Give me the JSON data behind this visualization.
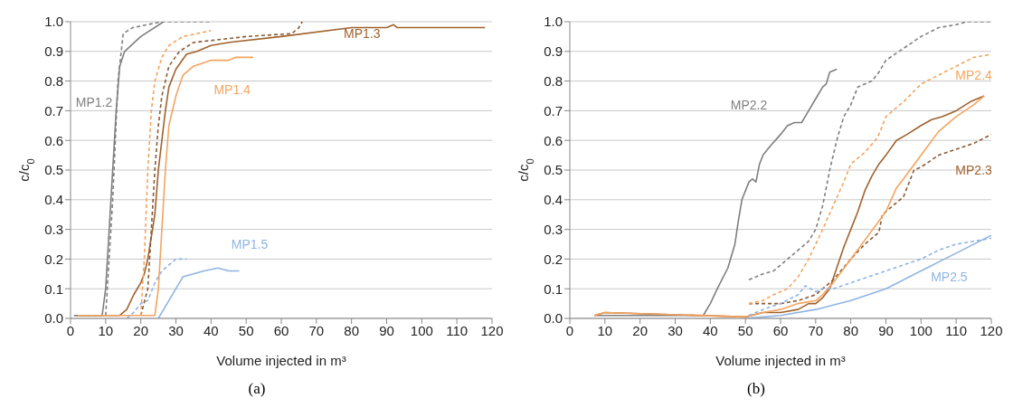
{
  "chart_data": [
    {
      "type": "line",
      "title": "(a)",
      "xlabel": "Volume injected in m³",
      "ylabel": "c/c$_{0}$",
      "xlim": [
        0,
        120
      ],
      "xticks": [
        0,
        10,
        20,
        30,
        40,
        50,
        60,
        70,
        80,
        90,
        100,
        110,
        120
      ],
      "ylim": [
        0,
        1
      ],
      "yticks": [
        {
          "value": 0,
          "label": "0.0"
        },
        {
          "value": 0.1,
          "label": "0.1"
        },
        {
          "value": 0.2,
          "label": "0.2"
        },
        {
          "value": 0.3,
          "label": "0.3"
        },
        {
          "value": 0.4,
          "label": "0.4"
        },
        {
          "value": 0.5,
          "label": "0.5"
        },
        {
          "value": 0.6,
          "label": "0.6"
        },
        {
          "value": 0.7,
          "label": "0.7"
        },
        {
          "value": 0.8,
          "label": "0.8"
        },
        {
          "value": 0.9,
          "label": "0.9"
        },
        {
          "value": 1,
          "label": "1.0"
        }
      ],
      "grid": "y",
      "marker": "none",
      "series": [
        {
          "name": "MP1.2",
          "color": "#7f7f7f",
          "line_style": "solid",
          "x": [
            1,
            9,
            10,
            12,
            13,
            14,
            15.4,
            20,
            26.5
          ],
          "values": [
            0.01,
            0.01,
            0.1,
            0.5,
            0.7,
            0.85,
            0.9,
            0.95,
            1.0
          ]
        },
        {
          "color": "#7f7f7f",
          "line_style": "dashed",
          "x": [
            1,
            10,
            12,
            13.5,
            15,
            17.7,
            26,
            40
          ],
          "values": [
            0.01,
            0.01,
            0.4,
            0.8,
            0.96,
            0.98,
            1.0,
            1.0
          ]
        },
        {
          "name": "MP1.3",
          "color": "#a0622d",
          "line_style": "solid",
          "x": [
            2,
            14,
            16,
            18,
            20,
            21,
            22,
            24,
            25,
            26,
            27,
            28,
            30,
            33,
            36,
            40,
            45,
            60,
            80,
            90,
            92,
            93,
            118
          ],
          "values": [
            0.01,
            0.01,
            0.03,
            0.08,
            0.12,
            0.15,
            0.2,
            0.35,
            0.5,
            0.6,
            0.7,
            0.78,
            0.84,
            0.89,
            0.9,
            0.92,
            0.93,
            0.95,
            0.98,
            0.98,
            0.99,
            0.98,
            0.98
          ]
        },
        {
          "color": "#8b5a32",
          "line_style": "dashed",
          "x": [
            20,
            22,
            23,
            24,
            25,
            26,
            28,
            31,
            35,
            50,
            63,
            65,
            66
          ],
          "values": [
            0.01,
            0.1,
            0.3,
            0.5,
            0.65,
            0.75,
            0.85,
            0.9,
            0.93,
            0.95,
            0.96,
            0.98,
            1.0
          ]
        },
        {
          "name": "MP1.4",
          "color": "#f4a460",
          "line_style": "solid",
          "x": [
            2,
            24,
            25,
            26,
            27,
            28,
            30,
            32,
            35,
            40,
            45,
            47,
            52
          ],
          "values": [
            0.01,
            0.01,
            0.1,
            0.3,
            0.5,
            0.65,
            0.75,
            0.82,
            0.85,
            0.87,
            0.87,
            0.88,
            0.88
          ]
        },
        {
          "color": "#f4a460",
          "line_style": "dashed",
          "x": [
            20,
            21,
            22,
            23,
            24,
            26,
            28,
            32,
            40
          ],
          "values": [
            0.01,
            0.2,
            0.5,
            0.7,
            0.8,
            0.88,
            0.92,
            0.95,
            0.97
          ]
        },
        {
          "name": "MP1.5",
          "color": "#8fb4e3",
          "line_style": "solid",
          "x": [
            25,
            26,
            28,
            30,
            32,
            35,
            38,
            42,
            45,
            48
          ],
          "values": [
            0,
            0.02,
            0.06,
            0.1,
            0.14,
            0.15,
            0.16,
            0.17,
            0.16,
            0.16
          ]
        },
        {
          "color": "#8fb4e3",
          "line_style": "dashed",
          "x": [
            16,
            18,
            20,
            22,
            24,
            26,
            28,
            30,
            33
          ],
          "values": [
            0,
            0.02,
            0.05,
            0.06,
            0.12,
            0.16,
            0.18,
            0.2,
            0.2
          ]
        }
      ]
    },
    {
      "type": "line",
      "title": "(b)",
      "xlabel": "Volume injected in m³",
      "ylabel": "c/c$_{0}$",
      "xlim": [
        0,
        120
      ],
      "xticks": [
        0,
        10,
        20,
        30,
        40,
        50,
        60,
        70,
        80,
        90,
        100,
        110,
        120
      ],
      "ylim": [
        0,
        1
      ],
      "yticks": [
        {
          "value": 0,
          "label": "0.0"
        },
        {
          "value": 0.1,
          "label": "0.1"
        },
        {
          "value": 0.2,
          "label": "0.2"
        },
        {
          "value": 0.3,
          "label": "0.3"
        },
        {
          "value": 0.4,
          "label": "0.4"
        },
        {
          "value": 0.5,
          "label": "0.5"
        },
        {
          "value": 0.6,
          "label": "0.6"
        },
        {
          "value": 0.7,
          "label": "0.7"
        },
        {
          "value": 0.8,
          "label": "0.8"
        },
        {
          "value": 0.9,
          "label": "0.9"
        },
        {
          "value": 1,
          "label": "1.0"
        }
      ],
      "grid": "y",
      "marker": "none",
      "series": [
        {
          "name": "MP2.2",
          "color": "#7f7f7f",
          "line_style": "solid",
          "x": [
            7,
            38,
            40,
            42,
            45,
            47,
            48,
            49,
            51,
            52,
            53,
            54,
            55,
            57,
            60,
            62,
            64,
            66,
            68,
            70,
            72,
            73,
            74,
            76
          ],
          "values": [
            0.01,
            0.01,
            0.05,
            0.1,
            0.17,
            0.25,
            0.33,
            0.4,
            0.46,
            0.47,
            0.46,
            0.52,
            0.55,
            0.58,
            0.62,
            0.65,
            0.66,
            0.66,
            0.7,
            0.74,
            0.78,
            0.79,
            0.83,
            0.84
          ]
        },
        {
          "color": "#7f7f7f",
          "line_style": "dashed",
          "x": [
            51,
            55,
            58,
            62,
            66,
            68,
            70,
            72,
            74,
            76,
            78,
            80,
            82,
            86,
            88,
            90,
            95,
            100,
            105,
            110,
            113,
            120
          ],
          "values": [
            0.13,
            0.15,
            0.16,
            0.2,
            0.24,
            0.26,
            0.3,
            0.38,
            0.5,
            0.6,
            0.68,
            0.72,
            0.78,
            0.8,
            0.83,
            0.87,
            0.91,
            0.95,
            0.98,
            0.99,
            1.0,
            1.0
          ]
        },
        {
          "name": "MP2.3",
          "color": "#a0622d",
          "line_style": "solid",
          "x": [
            7,
            10,
            50,
            55,
            60,
            65,
            68,
            70,
            72,
            74,
            76,
            78,
            80,
            82,
            84,
            86,
            88,
            90,
            93,
            96,
            100,
            103,
            106,
            110,
            114,
            118
          ],
          "values": [
            0.01,
            0.02,
            0.005,
            0.02,
            0.02,
            0.03,
            0.05,
            0.05,
            0.07,
            0.1,
            0.17,
            0.24,
            0.3,
            0.36,
            0.43,
            0.48,
            0.52,
            0.55,
            0.6,
            0.62,
            0.65,
            0.67,
            0.68,
            0.7,
            0.73,
            0.75
          ]
        },
        {
          "color": "#8b5a32",
          "line_style": "dashed",
          "x": [
            51,
            55,
            60,
            65,
            70,
            75,
            80,
            84,
            88,
            89,
            92,
            95,
            98,
            100,
            105,
            110,
            115,
            120
          ],
          "values": [
            0.05,
            0.05,
            0.05,
            0.06,
            0.08,
            0.13,
            0.2,
            0.25,
            0.29,
            0.35,
            0.38,
            0.41,
            0.5,
            0.51,
            0.55,
            0.57,
            0.59,
            0.62
          ]
        },
        {
          "name": "MP2.4",
          "color": "#f4a460",
          "line_style": "solid",
          "x": [
            7,
            10,
            50,
            55,
            60,
            65,
            70,
            72,
            75,
            80,
            85,
            90,
            93,
            95,
            100,
            105,
            110,
            115,
            118
          ],
          "values": [
            0.01,
            0.02,
            0.005,
            0.02,
            0.03,
            0.05,
            0.06,
            0.08,
            0.12,
            0.2,
            0.28,
            0.36,
            0.44,
            0.47,
            0.55,
            0.63,
            0.68,
            0.72,
            0.75
          ]
        },
        {
          "color": "#f4a460",
          "line_style": "dashed",
          "x": [
            51,
            55,
            58,
            62,
            65,
            68,
            70,
            72,
            75,
            78,
            80,
            84,
            87,
            88,
            90,
            95,
            100,
            105,
            110,
            115,
            120
          ],
          "values": [
            0.05,
            0.06,
            0.08,
            0.1,
            0.14,
            0.2,
            0.25,
            0.3,
            0.38,
            0.46,
            0.52,
            0.56,
            0.6,
            0.62,
            0.68,
            0.73,
            0.79,
            0.82,
            0.85,
            0.88,
            0.89
          ]
        },
        {
          "name": "MP2.5",
          "color": "#8fb4e3",
          "line_style": "solid",
          "x": [
            50,
            55,
            60,
            70,
            80,
            90,
            100,
            110,
            120
          ],
          "values": [
            0,
            0.005,
            0.01,
            0.03,
            0.06,
            0.1,
            0.16,
            0.22,
            0.28
          ]
        },
        {
          "color": "#8fb4e3",
          "line_style": "dashed",
          "x": [
            51,
            55,
            60,
            65,
            67,
            70,
            72,
            75,
            80,
            85,
            90,
            95,
            100,
            105,
            110,
            115,
            120
          ],
          "values": [
            0.01,
            0.03,
            0.05,
            0.08,
            0.11,
            0.09,
            0.1,
            0.1,
            0.12,
            0.14,
            0.16,
            0.18,
            0.2,
            0.23,
            0.25,
            0.26,
            0.27
          ]
        }
      ]
    }
  ]
}
